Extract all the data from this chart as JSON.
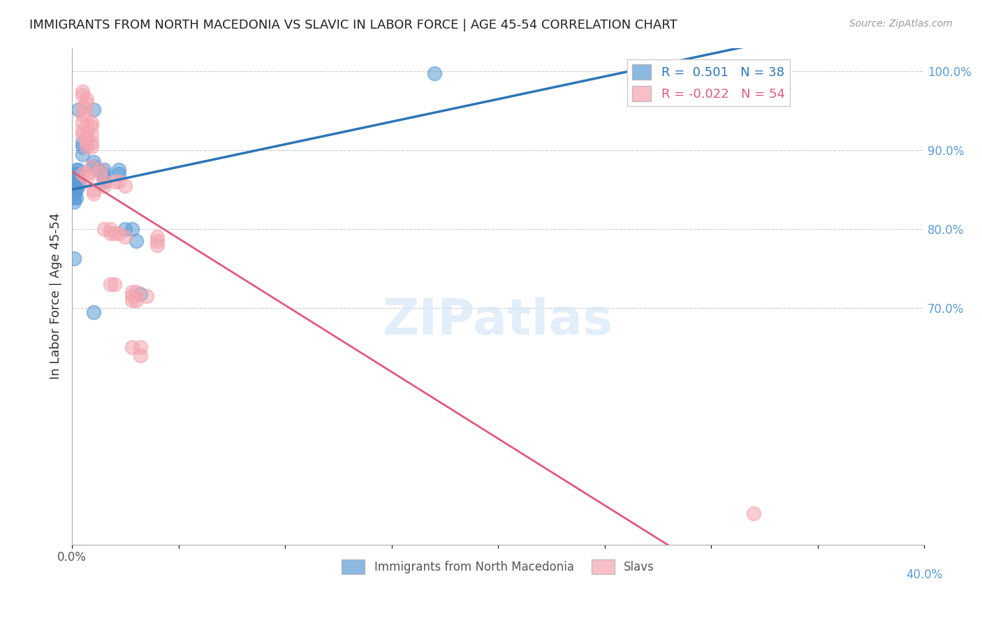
{
  "title": "IMMIGRANTS FROM NORTH MACEDONIA VS SLAVIC IN LABOR FORCE | AGE 45-54 CORRELATION CHART",
  "source": "Source: ZipAtlas.com",
  "ylabel": "In Labor Force | Age 45-54",
  "right_yticks": [
    100.0,
    90.0,
    80.0,
    70.0
  ],
  "xlim": [
    0.0,
    0.4
  ],
  "ylim": [
    0.4,
    1.03
  ],
  "blue_color": "#5B9BD5",
  "pink_color": "#F4A5B0",
  "blue_line_color": "#2E75B6",
  "pink_line_color": "#E05A7A",
  "watermark": "ZIPatlas",
  "blue_scatter_x": [
    0.01,
    0.005,
    0.005,
    0.005,
    0.003,
    0.003,
    0.003,
    0.003,
    0.003,
    0.002,
    0.002,
    0.002,
    0.002,
    0.002,
    0.002,
    0.001,
    0.001,
    0.001,
    0.001,
    0.001,
    0.001,
    0.001,
    0.001,
    0.01,
    0.01,
    0.012,
    0.015,
    0.015,
    0.015,
    0.015,
    0.022,
    0.022,
    0.025,
    0.028,
    0.03,
    0.032,
    0.01,
    0.17
  ],
  "blue_scatter_y": [
    0.952,
    0.905,
    0.91,
    0.895,
    0.952,
    0.875,
    0.87,
    0.86,
    0.855,
    0.875,
    0.87,
    0.865,
    0.855,
    0.85,
    0.84,
    0.865,
    0.86,
    0.855,
    0.85,
    0.845,
    0.84,
    0.835,
    0.763,
    0.885,
    0.88,
    0.875,
    0.875,
    0.87,
    0.865,
    0.86,
    0.875,
    0.87,
    0.8,
    0.8,
    0.785,
    0.718,
    0.695,
    0.998
  ],
  "pink_scatter_x": [
    0.005,
    0.005,
    0.005,
    0.005,
    0.005,
    0.005,
    0.005,
    0.007,
    0.007,
    0.007,
    0.007,
    0.007,
    0.007,
    0.007,
    0.007,
    0.007,
    0.007,
    0.009,
    0.009,
    0.009,
    0.009,
    0.009,
    0.009,
    0.01,
    0.01,
    0.013,
    0.013,
    0.015,
    0.015,
    0.015,
    0.018,
    0.018,
    0.018,
    0.02,
    0.02,
    0.02,
    0.022,
    0.022,
    0.025,
    0.025,
    0.028,
    0.028,
    0.028,
    0.028,
    0.03,
    0.03,
    0.032,
    0.032,
    0.035,
    0.04,
    0.04,
    0.04,
    0.32,
    0.005
  ],
  "pink_scatter_y": [
    0.975,
    0.97,
    0.955,
    0.945,
    0.935,
    0.925,
    0.92,
    0.965,
    0.96,
    0.945,
    0.93,
    0.92,
    0.915,
    0.91,
    0.905,
    0.87,
    0.865,
    0.935,
    0.93,
    0.92,
    0.91,
    0.905,
    0.88,
    0.85,
    0.845,
    0.875,
    0.87,
    0.86,
    0.855,
    0.8,
    0.8,
    0.795,
    0.73,
    0.86,
    0.795,
    0.73,
    0.86,
    0.795,
    0.855,
    0.79,
    0.72,
    0.715,
    0.71,
    0.65,
    0.72,
    0.71,
    0.65,
    0.64,
    0.715,
    0.79,
    0.785,
    0.78,
    0.44,
    0.87
  ]
}
